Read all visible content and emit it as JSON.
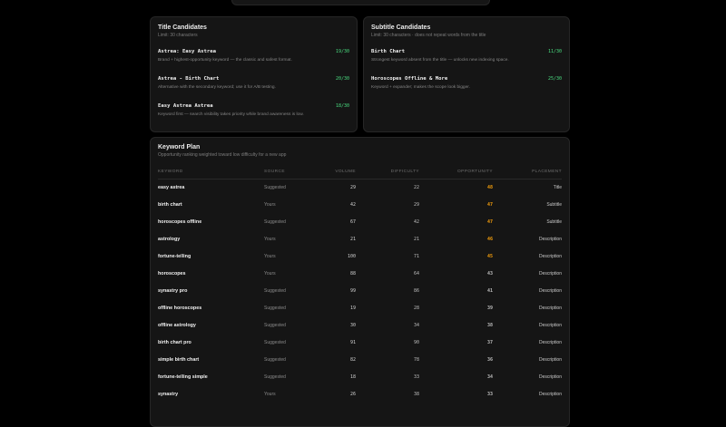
{
  "title_candidates": {
    "title": "Title Candidates",
    "limit": "Limit: 30 characters",
    "items": [
      {
        "name": "Astrea: Easy Astrea",
        "count": "19/30",
        "desc": "Brand + highest-opportunity keyword — the classic and safest format."
      },
      {
        "name": "Astrea - Birth Chart",
        "count": "20/30",
        "desc": "Alternative with the secondary keyword; use it for A/B testing."
      },
      {
        "name": "Easy Astrea Astrea",
        "count": "18/30",
        "desc": "Keyword first — search visibility takes priority while brand awareness is low."
      }
    ]
  },
  "subtitle_candidates": {
    "title": "Subtitle Candidates",
    "limit": "Limit: 30 characters · does not repeat words from the title",
    "items": [
      {
        "name": "Birth Chart",
        "count": "11/30",
        "desc": "Strongest keyword absent from the title — unlocks new indexing space."
      },
      {
        "name": "Horoscopes Offline & More",
        "count": "25/30",
        "desc": "Keyword + expander; makes the scope look bigger."
      }
    ]
  },
  "keyword_plan": {
    "title": "Keyword Plan",
    "subtitle": "Opportunity ranking weighted toward low difficulty for a new app",
    "headers": {
      "keyword": "KEYWORD",
      "source": "SOURCE",
      "volume": "VOLUME",
      "difficulty": "DIFFICULTY",
      "opportunity": "OPPORTUNITY",
      "placement": "PLACEMENT"
    },
    "rows": [
      {
        "keyword": "easy astrea",
        "source": "Suggested",
        "volume": "29",
        "difficulty": "22",
        "opportunity": "48",
        "placement": "Title",
        "highlight": true
      },
      {
        "keyword": "birth chart",
        "source": "Yours",
        "volume": "42",
        "difficulty": "29",
        "opportunity": "47",
        "placement": "Subtitle",
        "highlight": true
      },
      {
        "keyword": "horoscopes offline",
        "source": "Suggested",
        "volume": "67",
        "difficulty": "42",
        "opportunity": "47",
        "placement": "Subtitle",
        "highlight": true
      },
      {
        "keyword": "astrology",
        "source": "Yours",
        "volume": "21",
        "difficulty": "21",
        "opportunity": "46",
        "placement": "Description",
        "highlight": true
      },
      {
        "keyword": "fortune-telling",
        "source": "Yours",
        "volume": "100",
        "difficulty": "71",
        "opportunity": "45",
        "placement": "Description",
        "highlight": true
      },
      {
        "keyword": "horoscopes",
        "source": "Yours",
        "volume": "88",
        "difficulty": "64",
        "opportunity": "43",
        "placement": "Description",
        "highlight": false
      },
      {
        "keyword": "synastry pro",
        "source": "Suggested",
        "volume": "99",
        "difficulty": "86",
        "opportunity": "41",
        "placement": "Description",
        "highlight": false
      },
      {
        "keyword": "offline horoscopes",
        "source": "Suggested",
        "volume": "19",
        "difficulty": "28",
        "opportunity": "39",
        "placement": "Description",
        "highlight": false
      },
      {
        "keyword": "offline astrology",
        "source": "Suggested",
        "volume": "30",
        "difficulty": "34",
        "opportunity": "38",
        "placement": "Description",
        "highlight": false
      },
      {
        "keyword": "birth chart pro",
        "source": "Suggested",
        "volume": "91",
        "difficulty": "90",
        "opportunity": "37",
        "placement": "Description",
        "highlight": false
      },
      {
        "keyword": "simple birth chart",
        "source": "Suggested",
        "volume": "82",
        "difficulty": "78",
        "opportunity": "36",
        "placement": "Description",
        "highlight": false
      },
      {
        "keyword": "fortune-telling simple",
        "source": "Suggested",
        "volume": "18",
        "difficulty": "33",
        "opportunity": "34",
        "placement": "Description",
        "highlight": false
      },
      {
        "keyword": "synastry",
        "source": "Yours",
        "volume": "26",
        "difficulty": "38",
        "opportunity": "33",
        "placement": "Description",
        "highlight": false
      }
    ]
  },
  "colors": {
    "accent_count": "#4ade80",
    "opportunity_high": "#f59e0b"
  }
}
